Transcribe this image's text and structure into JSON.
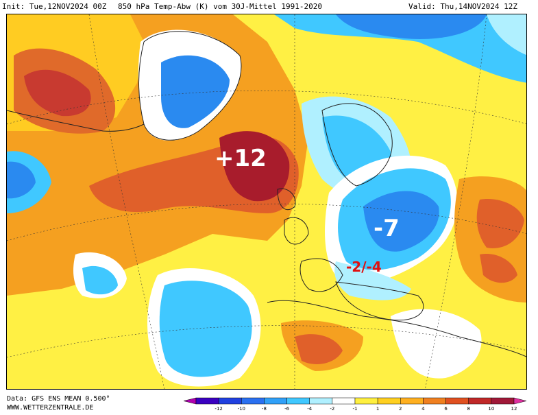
{
  "header": {
    "init": "Init: Tue,12NOV2024 00Z",
    "title": "850 hPa Temp-Abw (K) vom 30J-Mittel 1991-2020",
    "valid": "Valid: Thu,14NOV2024 12Z"
  },
  "annotations": {
    "warm": "+12",
    "cold": "-7",
    "range": "-2/-4"
  },
  "footer": {
    "data_line": "Data: GFS ENS MEAN 0.500°",
    "site": "WWW.WETTERZENTRALE.DE"
  },
  "legend": {
    "ticks": [
      "-12",
      "-10",
      "-8",
      "-6",
      "-4",
      "-2",
      "-1",
      "1",
      "2",
      "4",
      "6",
      "8",
      "10",
      "12"
    ],
    "colors": [
      "#b000b0",
      "#3a00c0",
      "#2040e0",
      "#2a70f0",
      "#30a0f8",
      "#40c8ff",
      "#b0f0ff",
      "#ffffff",
      "#fff040",
      "#ffd020",
      "#ffb020",
      "#f08020",
      "#e05020",
      "#c02828",
      "#a01838",
      "#e030a0"
    ]
  },
  "colors": {
    "strong_warm": "#a81c2c",
    "warm": "#d8562c",
    "orange": "#f5a020",
    "light_orange": "#ffcc22",
    "yellow": "#fff044",
    "white": "#ffffff",
    "light_blue": "#40c8ff",
    "blue": "#2a8af0",
    "annotation_white": "#ffffff",
    "annotation_red": "#e01010"
  }
}
